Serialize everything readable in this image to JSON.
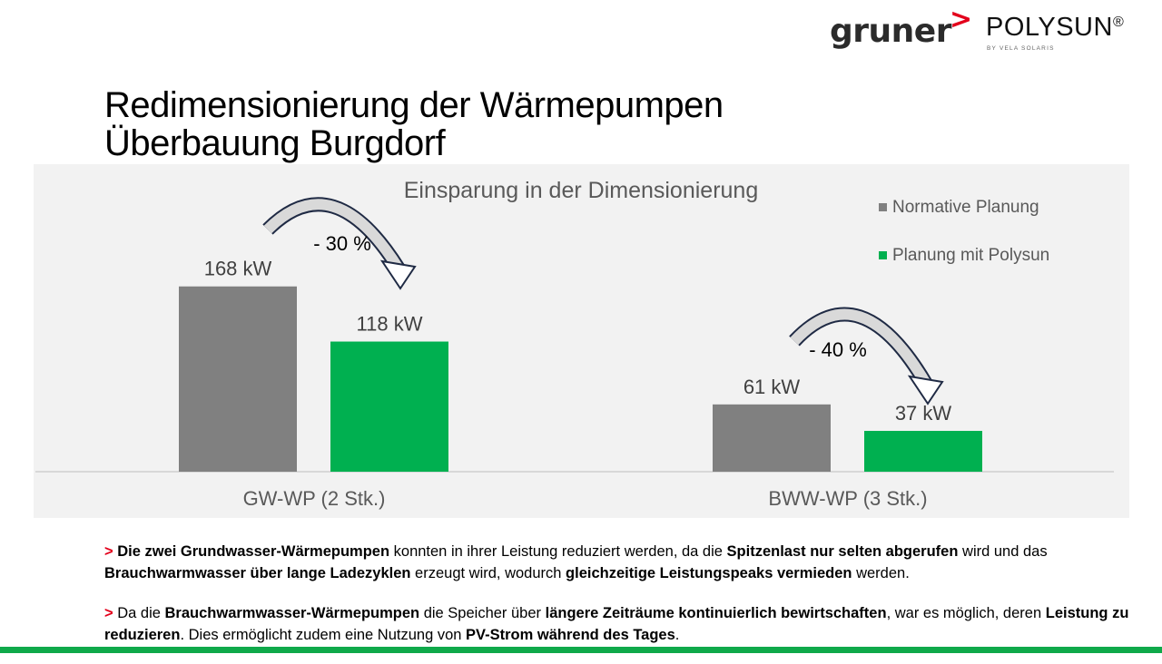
{
  "logo": {
    "gruner": "gruner",
    "gt": ">",
    "polysun": "POLYSUN",
    "reg": "®",
    "sub": "BY VELA SOLARIS"
  },
  "title": {
    "line1": "Redimensionierung der Wärmepumpen",
    "line2": "Überbauung Burgdorf"
  },
  "chart_data": {
    "type": "bar",
    "title": "Einsparung in der Dimensionierung",
    "categories": [
      "GW-WP (2 Stk.)",
      "BWW-WP (3 Stk.)"
    ],
    "series": [
      {
        "name": "Normative Planung",
        "values": [
          168,
          61
        ],
        "labels": [
          "168 kW",
          "61 kW"
        ],
        "color": "#808080"
      },
      {
        "name": "Planung mit Polysun",
        "values": [
          118,
          37
        ],
        "labels": [
          "118 kW",
          "37 kW"
        ],
        "color": "#00b050"
      }
    ],
    "annotations": [
      "- 30 %",
      "- 40 %"
    ],
    "ylim": [
      0,
      190
    ],
    "grid": false,
    "legend": "top-right",
    "xlabel": "",
    "ylabel": ""
  },
  "text": {
    "p1": [
      {
        "t": "> ",
        "s": "gt"
      },
      {
        "t": "Die zwei Grundwasser-Wärmepumpen",
        "s": "b"
      },
      {
        "t": " konnten in ihrer Leistung reduziert werden, da die ",
        "s": ""
      },
      {
        "t": "Spitzenlast nur selten abgerufen",
        "s": "b"
      },
      {
        "t": " wird und das ",
        "s": ""
      },
      {
        "t": "Brauchwarmwasser über lange Ladezyklen",
        "s": "b"
      },
      {
        "t": " erzeugt wird, wodurch ",
        "s": ""
      },
      {
        "t": "gleichzeitige Leistungspeaks vermieden",
        "s": "b"
      },
      {
        "t": " werden.",
        "s": ""
      }
    ],
    "p2": [
      {
        "t": "> ",
        "s": "gt"
      },
      {
        "t": "Da die ",
        "s": ""
      },
      {
        "t": "Brauchwarmwasser-Wärmepumpen",
        "s": "b"
      },
      {
        "t": " die Speicher über ",
        "s": ""
      },
      {
        "t": "längere Zeiträume kontinuierlich bewirtschaften",
        "s": "b"
      },
      {
        "t": ", war es möglich, deren ",
        "s": ""
      },
      {
        "t": "Leistung zu reduzieren",
        "s": "b"
      },
      {
        "t": ". Dies ermöglicht zudem eine Nutzung von ",
        "s": ""
      },
      {
        "t": "PV-Strom während des Tages",
        "s": "b"
      },
      {
        "t": ".",
        "s": ""
      }
    ]
  },
  "colors": {
    "accent_red": "#e3001b",
    "accent_green": "#0fa94a"
  }
}
